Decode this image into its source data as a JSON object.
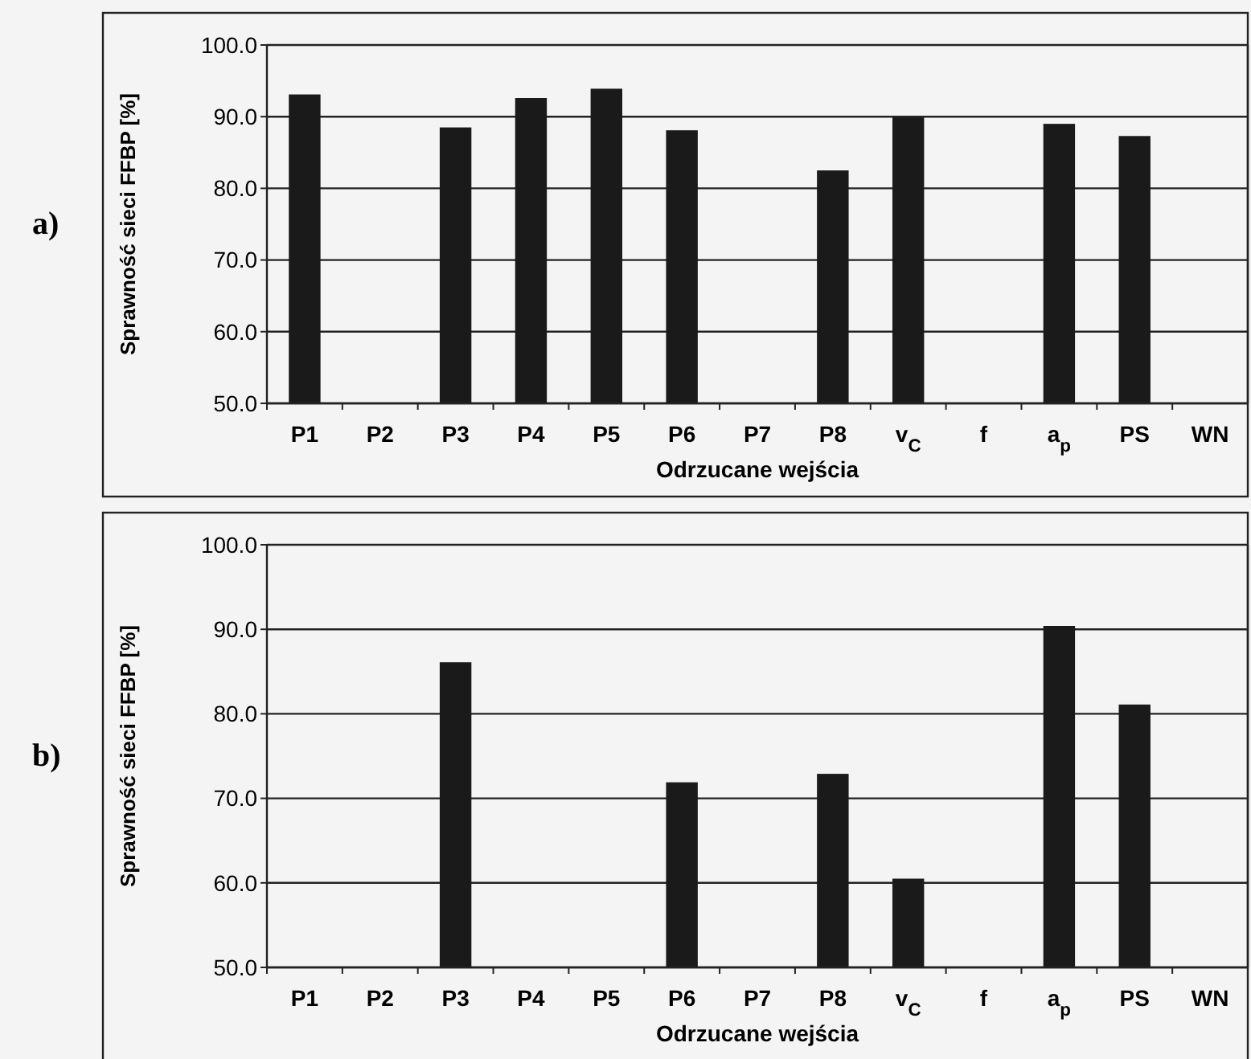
{
  "chart_data": [
    {
      "type": "bar",
      "categories": [
        "P1",
        "P2",
        "P3",
        "P4",
        "P5",
        "P6",
        "P7",
        "P8",
        "v$_{C}$",
        "f",
        "a$_{p}$",
        "PS",
        "WN"
      ],
      "values": [
        93.1,
        null,
        88.5,
        92.6,
        93.9,
        88.1,
        null,
        82.5,
        89.9,
        null,
        89.0,
        87.3,
        null
      ],
      "color": "#1a1a1a",
      "ylim": [
        50,
        100
      ],
      "yticks": [
        {
          "value": 50,
          "label": "50.0"
        },
        {
          "value": 60,
          "label": "60.0"
        },
        {
          "value": 70,
          "label": "70.0"
        },
        {
          "value": 80,
          "label": "80.0"
        },
        {
          "value": 90,
          "label": "90.0"
        },
        {
          "value": 100,
          "label": "100.0"
        }
      ],
      "grid": "y",
      "xlabel": "Odrzucane wejścia",
      "ylabel": "Sprawność sieci FFBP [%]",
      "annotations": [
        "a)"
      ]
    },
    {
      "type": "bar",
      "categories": [
        "P1",
        "P2",
        "P3",
        "P4",
        "P5",
        "P6",
        "P7",
        "P8",
        "v$_{C}$",
        "f",
        "a$_{p}$",
        "PS",
        "WN"
      ],
      "values": [
        null,
        null,
        86.1,
        null,
        null,
        71.9,
        null,
        72.9,
        60.5,
        null,
        90.4,
        81.1,
        null
      ],
      "color": "#1a1a1a",
      "ylim": [
        50,
        100
      ],
      "yticks": [
        {
          "value": 50,
          "label": "50.0"
        },
        {
          "value": 60,
          "label": "60.0"
        },
        {
          "value": 70,
          "label": "70.0"
        },
        {
          "value": 80,
          "label": "80.0"
        },
        {
          "value": 90,
          "label": "90.0"
        },
        {
          "value": 100,
          "label": "100.0"
        }
      ],
      "grid": "y",
      "xlabel": "Odrzucane wejścia",
      "ylabel": "Sprawność sieci FFBP [%]",
      "annotations": [
        "b)"
      ]
    }
  ]
}
